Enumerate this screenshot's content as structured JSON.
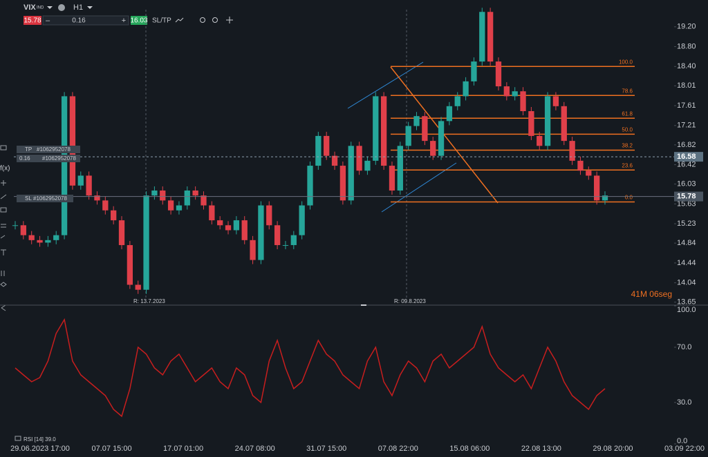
{
  "toolbar": {
    "symbol": "VIX",
    "market": "IND",
    "timeframe": "H1",
    "sell": "15.78",
    "volume": "0.16",
    "buy": "16.03",
    "sltp": "SL/TP"
  },
  "price": {
    "ylim": [
      13.59,
      19.74
    ],
    "yticks": [
      {
        "value": 19.2,
        "label": "19.20"
      },
      {
        "value": 18.8,
        "label": "18.80"
      },
      {
        "value": 18.4,
        "label": "18.40"
      },
      18.01,
      17.61,
      17.21,
      16.82,
      16.42,
      16.03,
      15.63,
      15.23,
      14.84,
      14.44,
      14.04,
      13.65
    ],
    "values": [
      15.2,
      15.0,
      14.9,
      14.85,
      14.9,
      15.0,
      17.8,
      16.0,
      16.2,
      15.8,
      15.7,
      15.5,
      15.3,
      14.8,
      14.0,
      13.9,
      15.8,
      15.9,
      15.7,
      15.5,
      15.6,
      15.9,
      15.8,
      15.6,
      15.3,
      15.2,
      15.1,
      15.3,
      14.9,
      14.5,
      15.6,
      15.2,
      14.8,
      14.8,
      15.0,
      15.6,
      16.4,
      17.0,
      16.6,
      16.4,
      15.7,
      16.8,
      16.3,
      16.5,
      17.8,
      16.4,
      15.9,
      16.8,
      17.2,
      17.4,
      16.9,
      16.6,
      17.3,
      17.6,
      17.8,
      18.1,
      18.5,
      19.5,
      18.5,
      18.0,
      17.8,
      17.9,
      17.5,
      17.0,
      16.8,
      17.8,
      17.6,
      16.9,
      16.5,
      16.3,
      16.2,
      15.7,
      15.8
    ],
    "color_up": "#26a69a",
    "color_down": "#e0404a",
    "bid": 16.58,
    "ask": 15.78,
    "fib": {
      "high": 18.4,
      "low": 15.67,
      "color": "#f07020",
      "levels": [
        {
          "value": 100,
          "label": "100.0"
        },
        {
          "value": 78.6,
          "label": "78.6"
        },
        {
          "value": 61.8,
          "label": "61.8"
        },
        {
          "value": 50,
          "label": "50.0"
        },
        {
          "value": 38.2,
          "label": "38.2"
        },
        {
          "value": 23.6,
          "label": "23.6"
        },
        {
          "value": 0,
          "label": "0.0"
        }
      ]
    },
    "markers": [
      "R: 13.7.2023",
      "R: 09.8.2023"
    ],
    "countdown": "41M 06seg"
  },
  "tags": [
    {
      "kind": "TP",
      "id": "#1062952078"
    },
    {
      "kind": "0.16",
      "id": "#1062952078"
    },
    {
      "kind": "SL",
      "id": "#1062952078"
    }
  ],
  "rsi": {
    "name": "RSI [14] 39.0",
    "color": "#c81e1e",
    "ylim": [
      0,
      100
    ],
    "yticks": [
      {
        "value": 100,
        "label": "100.0"
      },
      {
        "value": 70,
        "label": "70.0"
      },
      {
        "value": 30,
        "label": "30.0"
      },
      {
        "value": 0,
        "label": "0.0"
      }
    ],
    "values": [
      55,
      50,
      45,
      48,
      60,
      80,
      90,
      60,
      50,
      45,
      40,
      35,
      25,
      20,
      40,
      70,
      65,
      55,
      50,
      60,
      65,
      55,
      45,
      50,
      55,
      45,
      40,
      55,
      50,
      35,
      30,
      60,
      75,
      55,
      40,
      45,
      60,
      75,
      65,
      60,
      50,
      45,
      40,
      60,
      70,
      45,
      35,
      50,
      60,
      55,
      45,
      60,
      65,
      55,
      60,
      65,
      70,
      85,
      65,
      55,
      50,
      45,
      50,
      40,
      55,
      70,
      60,
      45,
      35,
      30,
      25,
      35,
      40
    ]
  },
  "time_labels": [
    "29.06.2023 17:00",
    "07.07 15:00",
    "17.07 01:00",
    "24.07 08:00",
    "31.07 15:00",
    "07.08 22:00",
    "15.08 06:00",
    "22.08 13:00",
    "29.08 20:00",
    "03.09 22:00"
  ]
}
